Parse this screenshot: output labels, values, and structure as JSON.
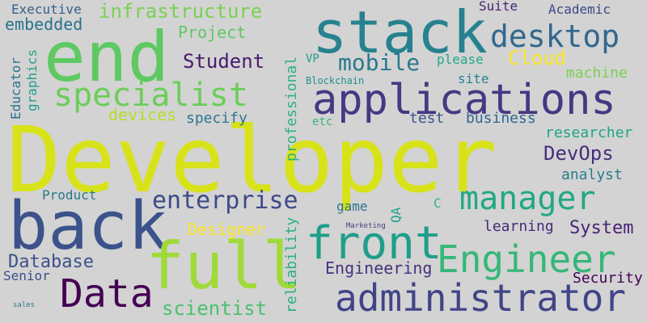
{
  "words": [
    {
      "text": "Developer",
      "color": "#d8e219"
    },
    {
      "text": "stack",
      "color": "#26828e"
    },
    {
      "text": "end",
      "color": "#5ec962"
    },
    {
      "text": "back",
      "color": "#3b528b"
    },
    {
      "text": "full",
      "color": "#a0da39"
    },
    {
      "text": "front",
      "color": "#1f9e89"
    },
    {
      "text": "applications",
      "color": "#443983"
    },
    {
      "text": "Engineer",
      "color": "#35b779"
    },
    {
      "text": "administrator",
      "color": "#414487"
    },
    {
      "text": "Data",
      "color": "#440154"
    },
    {
      "text": "specialist",
      "color": "#6ccd5a"
    },
    {
      "text": "desktop",
      "color": "#31688e"
    },
    {
      "text": "manager",
      "color": "#22a884"
    },
    {
      "text": "enterprise",
      "color": "#3e4a89"
    },
    {
      "text": "mobile",
      "color": "#2a788e"
    },
    {
      "text": "infrastructure",
      "color": "#7ad151"
    },
    {
      "text": "Student",
      "color": "#481a6c"
    },
    {
      "text": "Cloud",
      "color": "#fde725"
    },
    {
      "text": "DevOps",
      "color": "#472d7b"
    },
    {
      "text": "scientist",
      "color": "#4ac16d"
    },
    {
      "text": "Database",
      "color": "#3b528b"
    },
    {
      "text": "embedded",
      "color": "#2c728e"
    },
    {
      "text": "Project",
      "color": "#5ec962"
    },
    {
      "text": "Designer",
      "color": "#fde725"
    },
    {
      "text": "System",
      "color": "#482475"
    },
    {
      "text": "Engineering",
      "color": "#46337e"
    },
    {
      "text": "Security",
      "color": "#440154"
    },
    {
      "text": "machine",
      "color": "#7ad151"
    },
    {
      "text": "researcher",
      "color": "#20a486"
    },
    {
      "text": "analyst",
      "color": "#287c8e"
    },
    {
      "text": "learning",
      "color": "#472a7a"
    },
    {
      "text": "professional",
      "color": "#2db27d"
    },
    {
      "text": "reliability",
      "color": "#29af7f"
    },
    {
      "text": "devices",
      "color": "#b5de2b"
    },
    {
      "text": "specify",
      "color": "#2a788e"
    },
    {
      "text": "test",
      "color": "#39568c"
    },
    {
      "text": "business",
      "color": "#31688e"
    },
    {
      "text": "Product",
      "color": "#2a788e"
    },
    {
      "text": "Executive",
      "color": "#355f8d"
    },
    {
      "text": "Academic",
      "color": "#3e4a89"
    },
    {
      "text": "Suite",
      "color": "#482677"
    },
    {
      "text": "please",
      "color": "#22a884"
    },
    {
      "text": "VP",
      "color": "#1f9e89"
    },
    {
      "text": "site",
      "color": "#26828e"
    },
    {
      "text": "Blockchain",
      "color": "#21908d"
    },
    {
      "text": "etc",
      "color": "#35b779"
    },
    {
      "text": "Senior",
      "color": "#3b528b"
    },
    {
      "text": "Educator",
      "color": "#2c728e"
    },
    {
      "text": "graphics",
      "color": "#1fa088"
    },
    {
      "text": "game",
      "color": "#2c728e"
    },
    {
      "text": "QA",
      "color": "#20a386"
    },
    {
      "text": "C",
      "color": "#35b779"
    },
    {
      "text": "Marketing",
      "color": "#443a83"
    },
    {
      "text": "sales",
      "color": "#2a788e"
    }
  ]
}
